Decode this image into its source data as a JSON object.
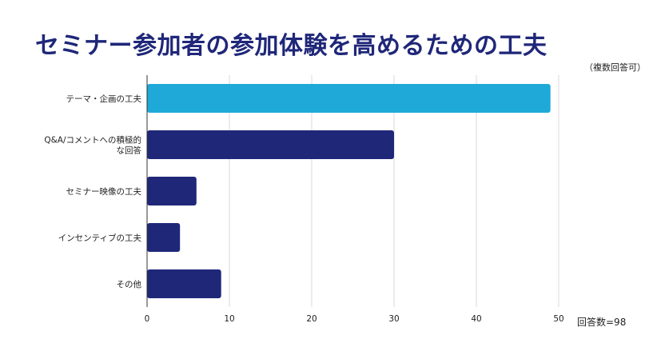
{
  "chart_data": {
    "type": "bar",
    "orientation": "horizontal",
    "title": "セミナー参加者の参加体験を高めるための工夫",
    "subtitle": "（複数回答可）",
    "annotation": "回答数=98",
    "categories": [
      [
        "テーマ・企画の工夫"
      ],
      [
        "Q&A/コメントへの積極的",
        "な回答"
      ],
      [
        "セミナー映像の工夫"
      ],
      [
        "インセンティブの工夫"
      ],
      [
        "その他"
      ]
    ],
    "values": [
      49,
      30,
      6,
      4,
      9
    ],
    "colors": [
      "#1ea9d9",
      "#1f2779",
      "#1f2779",
      "#1f2779",
      "#1f2779"
    ],
    "xlim": [
      0,
      50
    ],
    "xticks": [
      0,
      10,
      20,
      30,
      40,
      50
    ],
    "grid": true
  }
}
